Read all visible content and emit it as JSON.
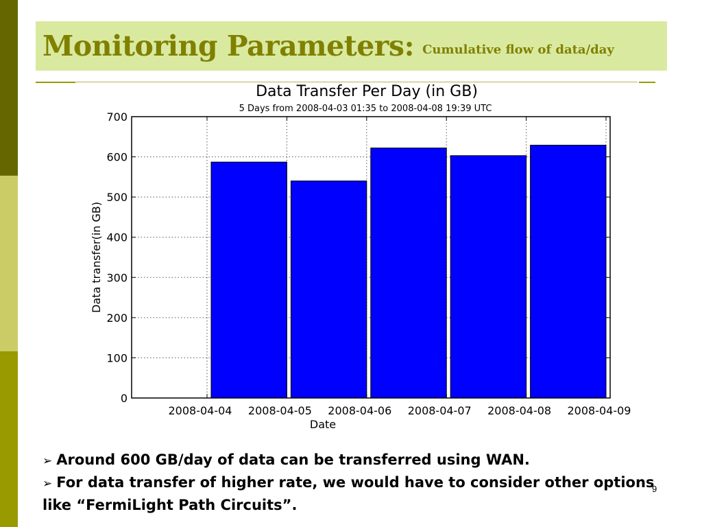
{
  "slide": {
    "title": "Monitoring Parameters:",
    "subtitle": "Cumulative flow of data/day",
    "bullets": [
      "Around 600 GB/day of data can be transferred using WAN.",
      "For data transfer of higher rate, we would have to consider other options like “FermiLight Path Circuits”."
    ],
    "page_number": "9",
    "colors": {
      "title": "#808000",
      "title_bg": "#d9eaa0",
      "bar": "#0000ff"
    }
  },
  "chart_data": {
    "type": "bar",
    "title": "Data Transfer Per Day (in GB)",
    "subtitle": "5 Days from 2008-04-03 01:35 to  2008-04-08 19:39 UTC",
    "xlabel": "Date",
    "ylabel": "Data transfer(in GB)",
    "x_tick_labels": [
      "2008-04-04",
      "2008-04-05",
      "2008-04-06",
      "2008-04-07",
      "2008-04-08",
      "2008-04-09"
    ],
    "categories": [
      "2008-04-04",
      "2008-04-05",
      "2008-04-06",
      "2008-04-07",
      "2008-04-08"
    ],
    "values": [
      587,
      540,
      622,
      603,
      629
    ],
    "y_ticks": [
      0,
      100,
      200,
      300,
      400,
      500,
      600,
      700
    ],
    "ylim": [
      0,
      700
    ],
    "grid": true,
    "bar_color": "#0000ff"
  }
}
